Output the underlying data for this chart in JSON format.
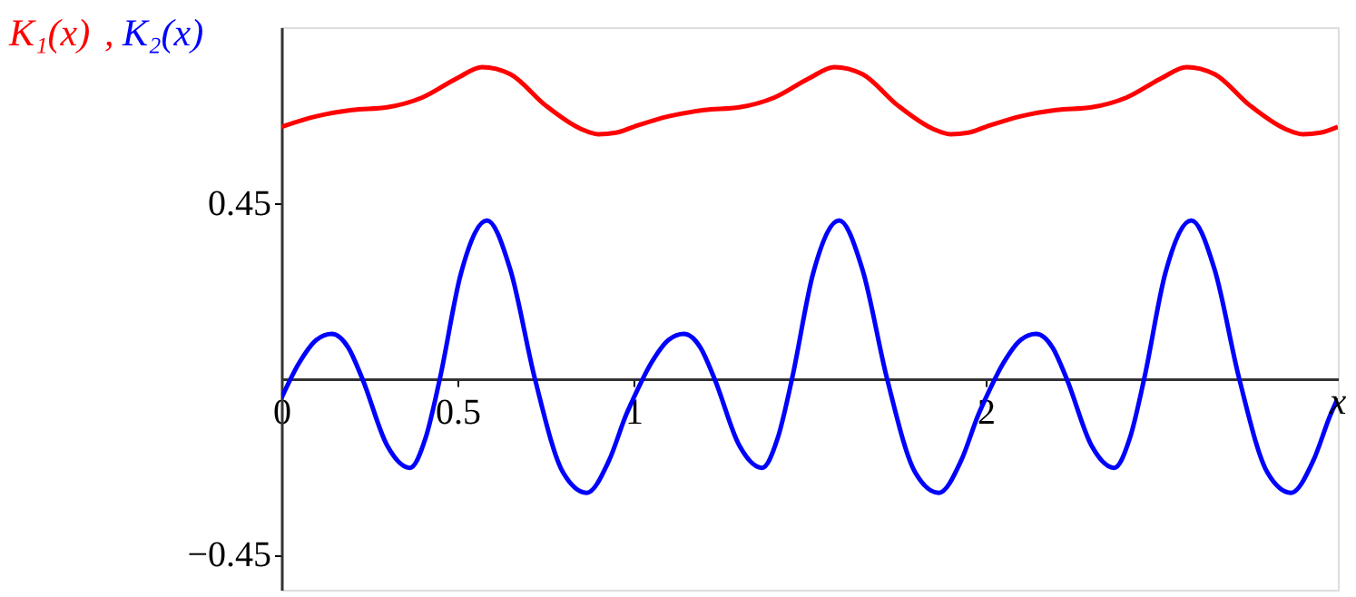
{
  "chart_data": {
    "type": "line",
    "xlabel": "x",
    "xlim": [
      0,
      3
    ],
    "ylim": [
      -0.54,
      0.9
    ],
    "xticks": [
      0,
      0.5,
      1,
      2
    ],
    "yticks": [
      {
        "value": -0.45,
        "label": "−0.45"
      },
      0.45
    ],
    "annotations": [
      ","
    ],
    "grid": false,
    "marker": "none",
    "line_style": "solid",
    "legend": false,
    "series": [
      {
        "name": "K₁(x)",
        "color": "#ff0000",
        "x": [
          0,
          0.1,
          0.2,
          0.3,
          0.4,
          0.5,
          0.57,
          0.65,
          0.75,
          0.85,
          0.9,
          0.95,
          1,
          1.1,
          1.2,
          1.3,
          1.4,
          1.5,
          1.57,
          1.65,
          1.75,
          1.85,
          1.9,
          1.95,
          2,
          2.1,
          2.2,
          2.3,
          2.4,
          2.5,
          2.57,
          2.65,
          2.75,
          2.85,
          2.9,
          2.95,
          3
        ],
        "values": [
          0.645,
          0.672,
          0.688,
          0.695,
          0.72,
          0.77,
          0.798,
          0.78,
          0.7,
          0.64,
          0.626,
          0.63,
          0.645,
          0.672,
          0.688,
          0.695,
          0.72,
          0.77,
          0.798,
          0.78,
          0.7,
          0.64,
          0.626,
          0.63,
          0.645,
          0.672,
          0.688,
          0.695,
          0.72,
          0.77,
          0.798,
          0.78,
          0.7,
          0.64,
          0.626,
          0.63,
          0.645
        ]
      },
      {
        "name": "K₂(x)",
        "color": "#0000ff",
        "x": [
          0,
          0.05,
          0.1,
          0.143,
          0.19,
          0.23,
          0.3,
          0.365,
          0.41,
          0.45,
          0.51,
          0.584,
          0.65,
          0.72,
          0.8,
          0.867,
          0.93,
          0.98,
          1,
          1.05,
          1.1,
          1.143,
          1.19,
          1.23,
          1.3,
          1.365,
          1.41,
          1.45,
          1.51,
          1.584,
          1.65,
          1.72,
          1.8,
          1.867,
          1.93,
          1.98,
          2,
          2.05,
          2.1,
          2.143,
          2.19,
          2.23,
          2.3,
          2.365,
          2.41,
          2.45,
          2.51,
          2.584,
          2.65,
          2.72,
          2.8,
          2.867,
          2.93,
          2.98,
          3
        ],
        "values": [
          -0.05,
          0.04,
          0.1,
          0.115,
          0.08,
          0,
          -0.17,
          -0.228,
          -0.15,
          0,
          0.27,
          0.405,
          0.28,
          0,
          -0.24,
          -0.292,
          -0.21,
          -0.09,
          -0.05,
          0.04,
          0.1,
          0.115,
          0.08,
          0,
          -0.17,
          -0.228,
          -0.15,
          0,
          0.27,
          0.405,
          0.28,
          0,
          -0.24,
          -0.292,
          -0.21,
          -0.09,
          -0.05,
          0.04,
          0.1,
          0.115,
          0.08,
          0,
          -0.17,
          -0.228,
          -0.15,
          0,
          0.27,
          0.405,
          0.28,
          0,
          -0.24,
          -0.292,
          -0.21,
          -0.09,
          -0.05
        ]
      }
    ]
  }
}
